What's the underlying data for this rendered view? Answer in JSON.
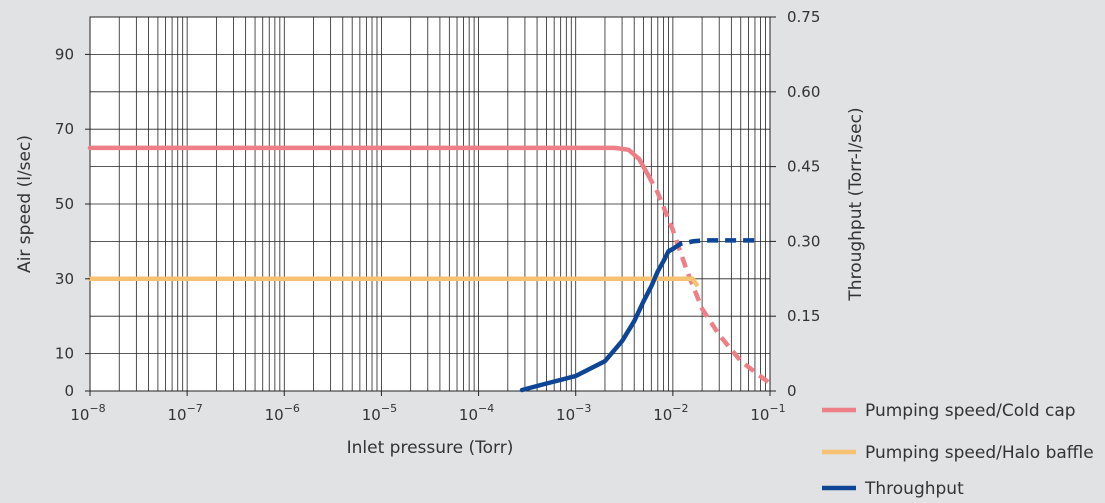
{
  "chart_data": {
    "type": "line",
    "xlabel": "Inlet pressure (Torr)",
    "ylabel": "Air speed (l/sec)",
    "y2label": "Throughput (Torr-l/sec)",
    "x_scale": "log",
    "xlim": [
      1e-08,
      0.1
    ],
    "ylim": [
      0,
      100
    ],
    "y2lim": [
      0,
      0.75
    ],
    "grid": true,
    "legend_placement": "bottom-right",
    "x_ticks": [
      {
        "value": 1e-08,
        "base": "10",
        "exp": "−8"
      },
      {
        "value": 1e-07,
        "base": "10",
        "exp": "−7"
      },
      {
        "value": 1e-06,
        "base": "10",
        "exp": "−6"
      },
      {
        "value": 1e-05,
        "base": "10",
        "exp": "−5"
      },
      {
        "value": 0.0001,
        "base": "10",
        "exp": "−4"
      },
      {
        "value": 0.001,
        "base": "10",
        "exp": "−3"
      },
      {
        "value": 0.01,
        "base": "10",
        "exp": "−2"
      },
      {
        "value": 0.1,
        "base": "10",
        "exp": "−1"
      }
    ],
    "y_ticks": [
      {
        "value": 0,
        "label": "0"
      },
      {
        "value": 10,
        "label": "10"
      },
      {
        "value": 30,
        "label": "30"
      },
      {
        "value": 50,
        "label": "50"
      },
      {
        "value": 70,
        "label": "70"
      },
      {
        "value": 90,
        "label": "90"
      }
    ],
    "y2_ticks": [
      {
        "value": 0,
        "label": "0"
      },
      {
        "value": 0.15,
        "label": "0.15"
      },
      {
        "value": 0.3,
        "label": "0.30"
      },
      {
        "value": 0.45,
        "label": "0.45"
      },
      {
        "value": 0.6,
        "label": "0.60"
      },
      {
        "value": 0.75,
        "label": "0.75"
      }
    ],
    "series": [
      {
        "name": "Pumping speed/Cold cap",
        "axis": "left",
        "color": "#ef7f86",
        "solid": [
          [
            1e-08,
            65
          ],
          [
            0.0001,
            65
          ],
          [
            0.001,
            65
          ],
          [
            0.0025,
            65
          ],
          [
            0.0035,
            64.5
          ],
          [
            0.0045,
            62
          ],
          [
            0.0055,
            58
          ]
        ],
        "dashed": [
          [
            0.0055,
            58
          ],
          [
            0.007,
            53
          ],
          [
            0.01,
            43
          ],
          [
            0.014,
            32
          ],
          [
            0.02,
            22
          ],
          [
            0.03,
            15
          ],
          [
            0.05,
            8
          ],
          [
            0.1,
            2
          ]
        ]
      },
      {
        "name": "Pumping speed/Halo baffle",
        "axis": "left",
        "color": "#f6c272",
        "solid": [
          [
            1e-08,
            30
          ],
          [
            0.0001,
            30
          ],
          [
            0.001,
            30
          ],
          [
            0.01,
            30
          ],
          [
            0.016,
            30
          ]
        ],
        "dashed": [
          [
            0.016,
            30
          ],
          [
            0.018,
            28
          ]
        ]
      },
      {
        "name": "Throughput",
        "axis": "right",
        "color": "#0d4696",
        "solid": [
          [
            0.00028,
            0.002
          ],
          [
            0.0005,
            0.015
          ],
          [
            0.001,
            0.03
          ],
          [
            0.002,
            0.06
          ],
          [
            0.003,
            0.1
          ],
          [
            0.004,
            0.14
          ],
          [
            0.005,
            0.18
          ],
          [
            0.006,
            0.21
          ],
          [
            0.007,
            0.24
          ],
          [
            0.008,
            0.26
          ],
          [
            0.009,
            0.28
          ],
          [
            0.01,
            0.285
          ]
        ],
        "dashed": [
          [
            0.01,
            0.285
          ],
          [
            0.012,
            0.295
          ],
          [
            0.016,
            0.3
          ],
          [
            0.02,
            0.302
          ],
          [
            0.04,
            0.302
          ],
          [
            0.08,
            0.302
          ]
        ]
      }
    ]
  }
}
